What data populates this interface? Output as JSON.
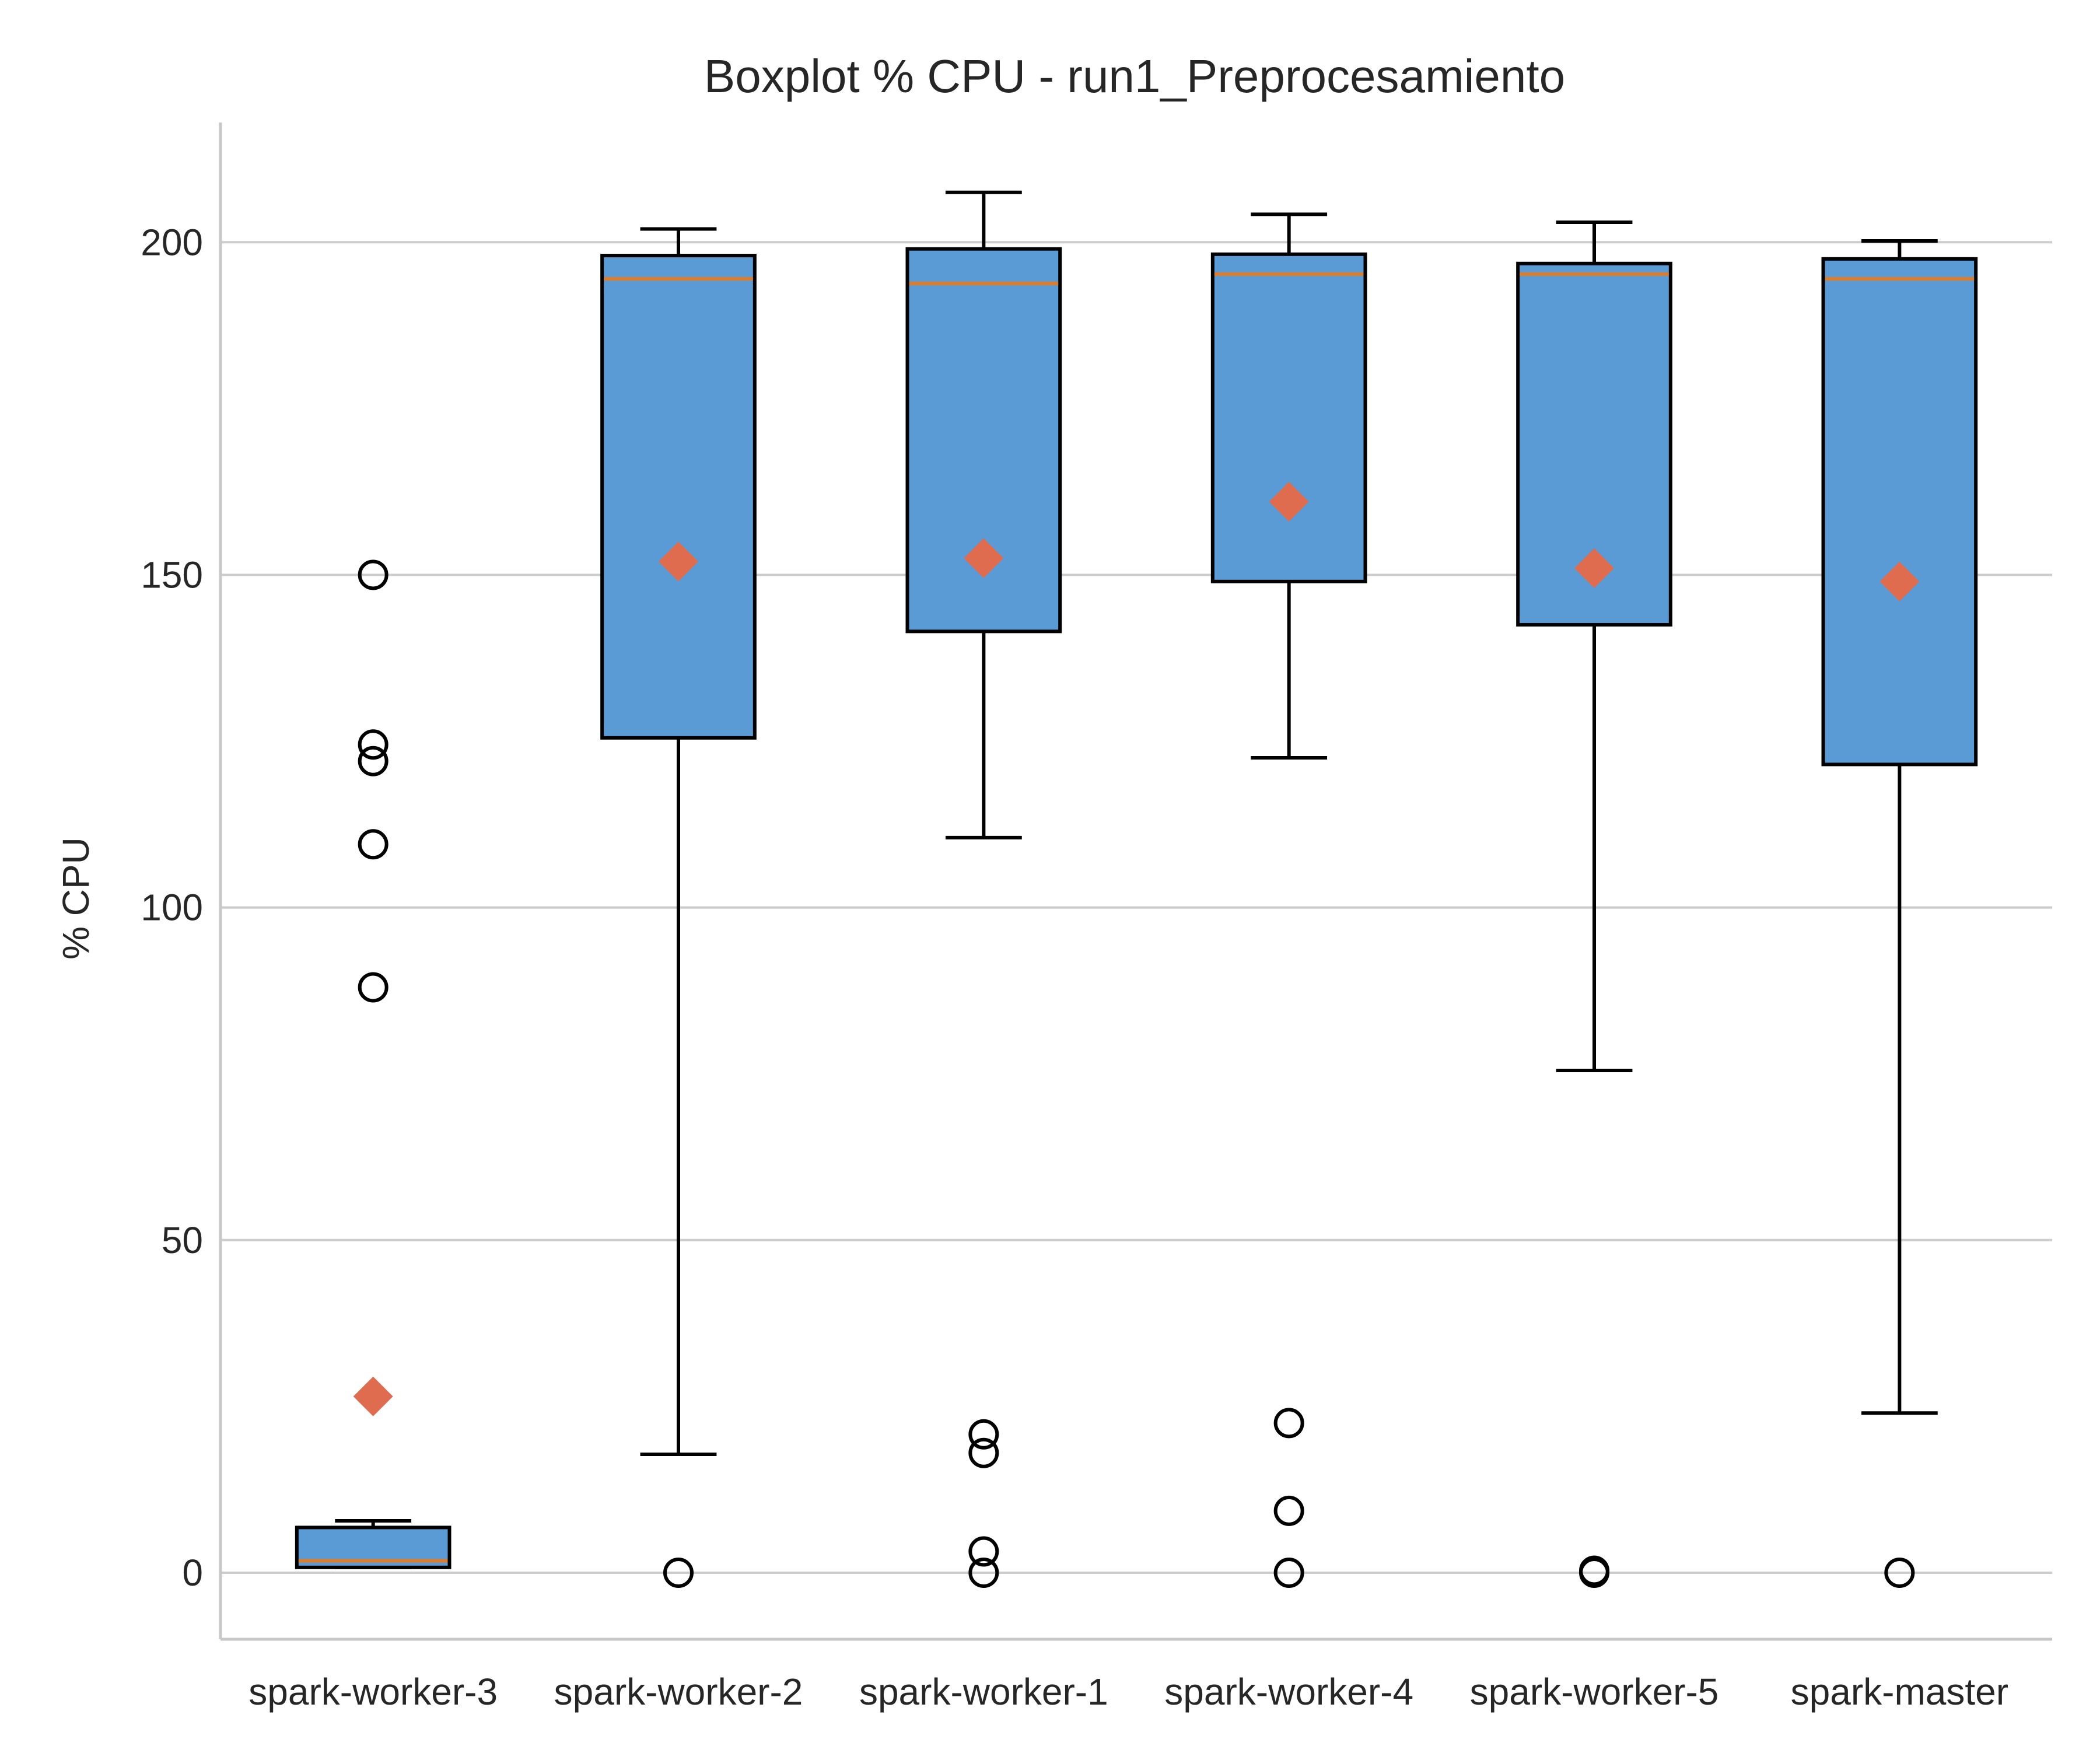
{
  "chart_data": {
    "type": "box",
    "title": "Boxplot % CPU - run1_Preprocesamiento",
    "xlabel": "",
    "ylabel": "% CPU",
    "ylim": [
      -10,
      218
    ],
    "yticks": [
      0,
      50,
      100,
      150,
      200
    ],
    "grid": "horizontal",
    "colors": {
      "box_fill": "#5b9bd5",
      "box_edge": "#000000",
      "median": "#e07b27",
      "mean_marker": "#e06c4f",
      "grid": "#cccccc",
      "axis": "#c8c8c8"
    },
    "categories": [
      "spark-worker-3",
      "spark-worker-2",
      "spark-worker-1",
      "spark-worker-4",
      "spark-worker-5",
      "spark-master"
    ],
    "boxes": [
      {
        "label": "spark-worker-3",
        "whisker_low": 0.8,
        "q1": 0.8,
        "median": 1.8,
        "q3": 6.8,
        "whisker_high": 7.8,
        "mean": 26.5,
        "outliers": [
          88,
          109.5,
          122,
          124.5,
          150
        ]
      },
      {
        "label": "spark-worker-2",
        "whisker_low": 17.8,
        "q1": 125.5,
        "median": 194.5,
        "q3": 198,
        "whisker_high": 202,
        "mean": 152,
        "outliers": [
          0
        ]
      },
      {
        "label": "spark-worker-1",
        "whisker_low": 110.5,
        "q1": 141.5,
        "median": 193.8,
        "q3": 199,
        "whisker_high": 207.5,
        "mean": 152.5,
        "outliers": [
          0,
          3.2,
          18,
          20.8
        ]
      },
      {
        "label": "spark-worker-4",
        "whisker_low": 122.5,
        "q1": 149,
        "median": 195.2,
        "q3": 198.2,
        "whisker_high": 204.2,
        "mean": 161,
        "outliers": [
          0,
          9.3,
          22.5
        ]
      },
      {
        "label": "spark-worker-5",
        "whisker_low": 75.5,
        "q1": 142.5,
        "median": 195.2,
        "q3": 196.8,
        "whisker_high": 203,
        "mean": 151,
        "outliers": [
          0,
          0.3
        ]
      },
      {
        "label": "spark-master",
        "whisker_low": 24,
        "q1": 121.5,
        "median": 194.5,
        "q3": 197.5,
        "whisker_high": 200.2,
        "mean": 149,
        "outliers": [
          0
        ]
      }
    ]
  }
}
